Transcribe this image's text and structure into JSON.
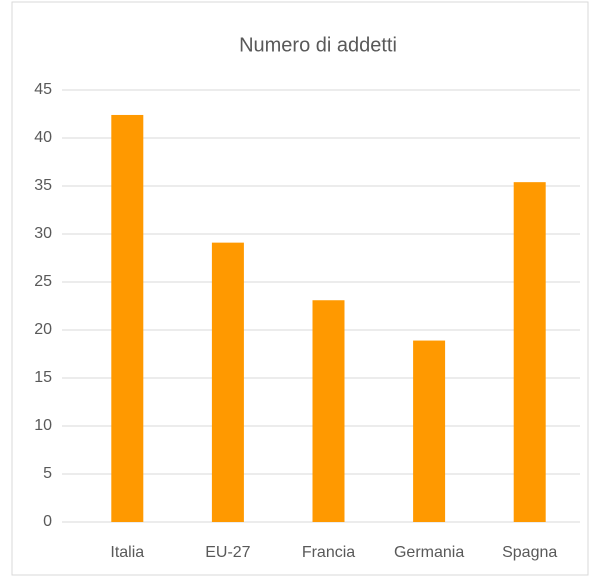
{
  "chart_data": {
    "type": "bar",
    "title": "Numero di addetti",
    "categories": [
      "Italia",
      "EU-27",
      "Francia",
      "Germania",
      "Spagna"
    ],
    "values": [
      42.4,
      29.1,
      23.1,
      18.9,
      35.4
    ],
    "color": "#ff9900",
    "ylim": [
      0,
      45
    ],
    "yticks": [
      0,
      5,
      10,
      15,
      20,
      25,
      30,
      35,
      40,
      45
    ],
    "grid": true
  }
}
